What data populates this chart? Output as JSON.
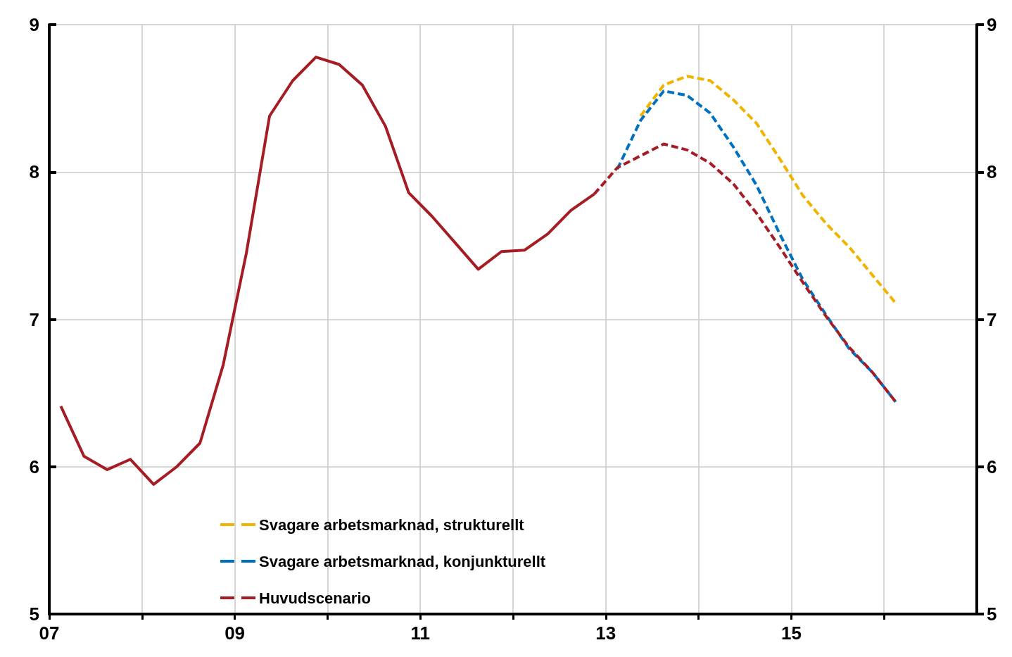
{
  "chart_data": {
    "type": "line",
    "xlim": [
      2007,
      2017
    ],
    "xticks": [
      {
        "value": 2007,
        "label": "07"
      },
      {
        "value": 2008,
        "label": null
      },
      {
        "value": 2009,
        "label": "09"
      },
      {
        "value": 2010,
        "label": null
      },
      {
        "value": 2011,
        "label": "11"
      },
      {
        "value": 2012,
        "label": null
      },
      {
        "value": 2013,
        "label": "13"
      },
      {
        "value": 2014,
        "label": null
      },
      {
        "value": 2015,
        "label": "15"
      },
      {
        "value": 2016,
        "label": null
      }
    ],
    "ylim": [
      5,
      9
    ],
    "yticks": [
      5,
      6,
      7,
      8,
      9
    ],
    "y2lim": [
      5,
      9
    ],
    "y2ticks": [
      5,
      6,
      7,
      8,
      9
    ],
    "grid": true,
    "legend": "bottom left",
    "marker": "none",
    "series": [
      {
        "name": "Svagare arbetsmarknad, strukturellt",
        "color": "#f0b400",
        "line_style": "dashed",
        "x": [
          2013.375,
          2013.625,
          2013.875,
          2014.125,
          2014.375,
          2014.625,
          2014.875,
          2015.125,
          2015.375,
          2015.625,
          2015.875,
          2016.125
        ],
        "values": [
          8.38,
          8.59,
          8.65,
          8.62,
          8.49,
          8.33,
          8.09,
          7.84,
          7.65,
          7.49,
          7.3,
          7.11
        ]
      },
      {
        "name": "Svagare arbetsmarknad, konjunkturellt",
        "color": "#0070c0",
        "line_style": "dashed",
        "x": [
          2013.125,
          2013.375,
          2013.625,
          2013.875,
          2014.125,
          2014.375,
          2014.625,
          2014.875,
          2015.125,
          2015.375,
          2015.625,
          2015.875,
          2016.125
        ],
        "values": [
          8.02,
          8.35,
          8.55,
          8.52,
          8.4,
          8.17,
          7.91,
          7.58,
          7.27,
          7.03,
          6.8,
          6.64,
          6.44
        ]
      },
      {
        "name": "Huvudscenario",
        "color": "#a51c24",
        "line_style": "dashed",
        "x": [
          2012.875,
          2013.125,
          2013.375,
          2013.625,
          2013.875,
          2014.125,
          2014.375,
          2014.625,
          2014.875,
          2015.125,
          2015.375,
          2015.625,
          2015.875,
          2016.125
        ],
        "values": [
          7.85,
          8.03,
          8.11,
          8.19,
          8.15,
          8.06,
          7.92,
          7.72,
          7.49,
          7.25,
          7.02,
          6.81,
          6.64,
          6.44
        ]
      },
      {
        "color": "#a51c24",
        "line_style": "solid",
        "x": [
          2007.125,
          2007.375,
          2007.625,
          2007.875,
          2008.125,
          2008.375,
          2008.625,
          2008.875,
          2009.125,
          2009.375,
          2009.625,
          2009.875,
          2010.125,
          2010.375,
          2010.625,
          2010.875,
          2011.125,
          2011.375,
          2011.625,
          2011.875,
          2012.125,
          2012.375,
          2012.625,
          2012.875
        ],
        "values": [
          6.41,
          6.07,
          5.98,
          6.05,
          5.88,
          6.0,
          6.16,
          6.69,
          7.45,
          8.38,
          8.62,
          8.78,
          8.73,
          8.59,
          8.31,
          7.86,
          7.7,
          7.52,
          7.34,
          7.46,
          7.47,
          7.58,
          7.74,
          7.85
        ]
      }
    ]
  }
}
